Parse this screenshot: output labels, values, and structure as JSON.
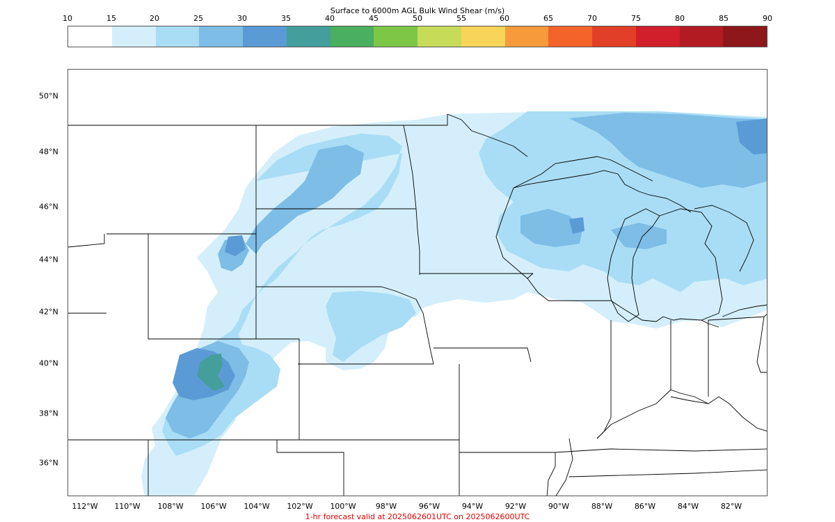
{
  "title": "Surface to 6000m AGL Bulk Wind Shear (m/s)",
  "colorbar": {
    "ticks": [
      "10",
      "15",
      "20",
      "25",
      "30",
      "35",
      "40",
      "45",
      "50",
      "55",
      "60",
      "65",
      "70",
      "75",
      "80",
      "85",
      "90"
    ],
    "colors": [
      "#ffffff",
      "#d4effb",
      "#a9ddf5",
      "#7dbde6",
      "#5b9bd5",
      "#449e9c",
      "#4aaf5e",
      "#7dc646",
      "#c6dc59",
      "#f8d459",
      "#f69a3b",
      "#f3632a",
      "#e23f28",
      "#d11f2b",
      "#b31b23",
      "#8e171b"
    ]
  },
  "map": {
    "lat_labels": [
      "50°N",
      "48°N",
      "46°N",
      "44°N",
      "42°N",
      "40°N",
      "38°N",
      "36°N"
    ],
    "lon_labels": [
      "112°W",
      "110°W",
      "108°W",
      "106°W",
      "104°W",
      "102°W",
      "100°W",
      "98°W",
      "96°W",
      "94°W",
      "92°W",
      "90°W",
      "88°W",
      "86°W",
      "84°W",
      "82°W"
    ]
  },
  "footer": "1-hr forecast valid at 2025062601UTC on 2025062600UTC"
}
